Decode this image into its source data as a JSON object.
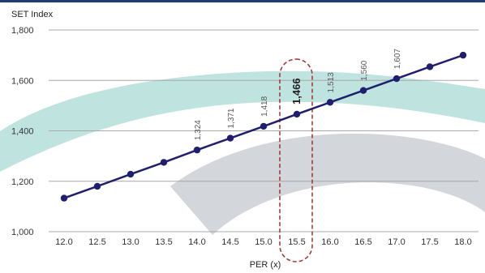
{
  "chart_data": {
    "type": "line",
    "ylabel": "SET Index",
    "xlabel": "PER (x)",
    "x": [
      12.0,
      12.5,
      13.0,
      13.5,
      14.0,
      14.5,
      15.0,
      15.5,
      16.0,
      16.5,
      17.0,
      17.5,
      18.0
    ],
    "x_tick_labels": [
      "12.0",
      "12.5",
      "13.0",
      "13.5",
      "14.0",
      "14.5",
      "15.0",
      "15.5",
      "16.0",
      "16.5",
      "17.0",
      "17.5",
      "18.0"
    ],
    "series": [
      {
        "values": [
          1133,
          1180,
          1228,
          1275,
          1324,
          1371,
          1418,
          1466,
          1513,
          1560,
          1607,
          1654,
          1700
        ]
      }
    ],
    "data_labels": [
      {
        "x": 14.0,
        "text": "1,324"
      },
      {
        "x": 14.5,
        "text": "1,371"
      },
      {
        "x": 15.0,
        "text": "1,418"
      },
      {
        "x": 15.5,
        "text": "1,466",
        "highlight": true
      },
      {
        "x": 16.0,
        "text": "1,513"
      },
      {
        "x": 16.5,
        "text": "1,560"
      },
      {
        "x": 17.0,
        "text": "1,607"
      }
    ],
    "y_ticks": [
      1000,
      1200,
      1400,
      1600,
      1800
    ],
    "y_tick_labels": [
      "1,000",
      "1,200",
      "1,400",
      "1,600",
      "1,800"
    ],
    "ylim": [
      1000,
      1800
    ],
    "xlim": [
      12.0,
      18.0
    ],
    "grid": "horizontal",
    "highlight_x": 15.5,
    "colors": {
      "line": "#1f1f6e",
      "marker": "#1f1f6e",
      "grid": "#a8a8a8",
      "highlight_box": "#a33030",
      "top_bar": "#1f3f72",
      "watermark_teal": "#bfe3de",
      "watermark_gray": "#d3d6db"
    }
  }
}
